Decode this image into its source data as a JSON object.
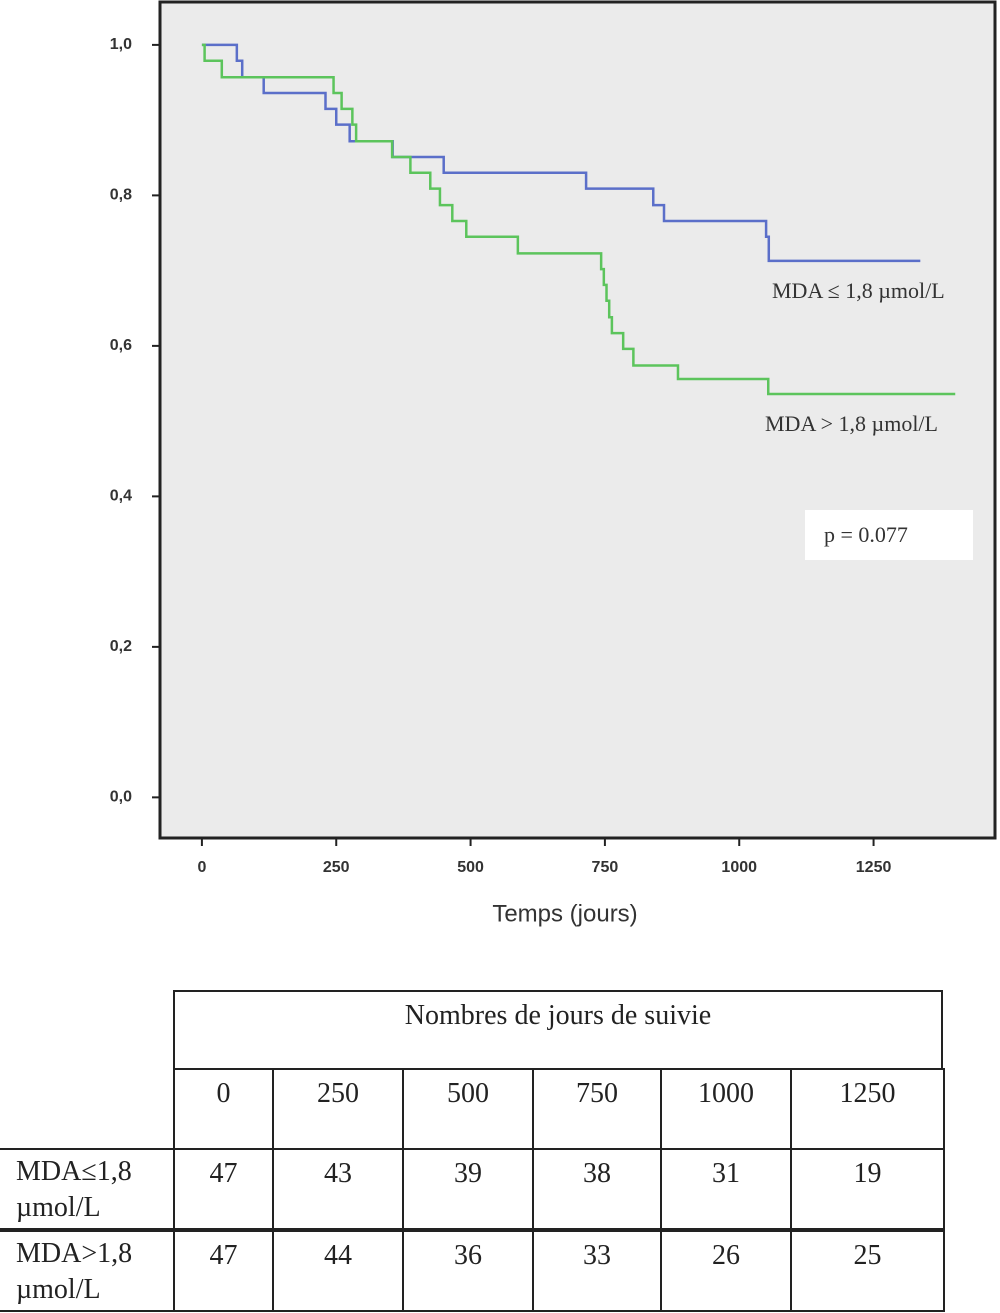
{
  "chart_data": {
    "type": "step",
    "ylim": [
      -0.054,
      1.057
    ],
    "yticks": [
      {
        "value": 0,
        "label": "0,0"
      },
      {
        "value": 0.2,
        "label": "0,2"
      },
      {
        "value": 0.4,
        "label": "0,4"
      },
      {
        "value": 0.6,
        "label": "0,6"
      },
      {
        "value": 0.8,
        "label": "0,8"
      },
      {
        "value": 1,
        "label": "1,0"
      }
    ],
    "xlim": [
      -78,
      1476
    ],
    "xticks": [
      0,
      250,
      500,
      750,
      1000,
      1250
    ],
    "x_label": "Temps (jours)",
    "series": [
      {
        "name": "MDA ≤ 1,8 µmol/L",
        "color": "#5b6fc9",
        "x": [
          0,
          65,
          75,
          115,
          230,
          250,
          275,
          355,
          450,
          715,
          840,
          860,
          1050,
          1055,
          1337
        ],
        "values": [
          1.0,
          0.979,
          0.957,
          0.936,
          0.915,
          0.894,
          0.872,
          0.851,
          0.83,
          0.809,
          0.787,
          0.766,
          0.745,
          0.713,
          0.713
        ]
      },
      {
        "name": "MDA > 1,8 µmol/L",
        "color": "#5cc45c",
        "x": [
          0,
          5,
          37,
          245,
          260,
          280,
          287,
          354,
          388,
          425,
          443,
          466,
          492,
          588,
          743,
          748,
          753,
          758,
          763,
          784,
          803,
          886,
          1054,
          1402
        ],
        "values": [
          1.0,
          0.979,
          0.957,
          0.936,
          0.915,
          0.894,
          0.872,
          0.851,
          0.83,
          0.809,
          0.787,
          0.766,
          0.745,
          0.723,
          0.702,
          0.681,
          0.66,
          0.638,
          0.617,
          0.596,
          0.574,
          0.556,
          0.536,
          0.536
        ]
      }
    ],
    "annotation": "p = 0.077"
  },
  "table": {
    "title": "Nombres de jours de suivie",
    "columns": [
      "0",
      "250",
      "500",
      "750",
      "1000",
      "1250"
    ],
    "rows": [
      {
        "label": "MDA≤1,8 µmol/L",
        "values": [
          "47",
          "43",
          "39",
          "38",
          "31",
          "19"
        ]
      },
      {
        "label": "MDA>1,8 µmol/L",
        "values": [
          "47",
          "44",
          "36",
          "33",
          "26",
          "25"
        ]
      }
    ]
  }
}
